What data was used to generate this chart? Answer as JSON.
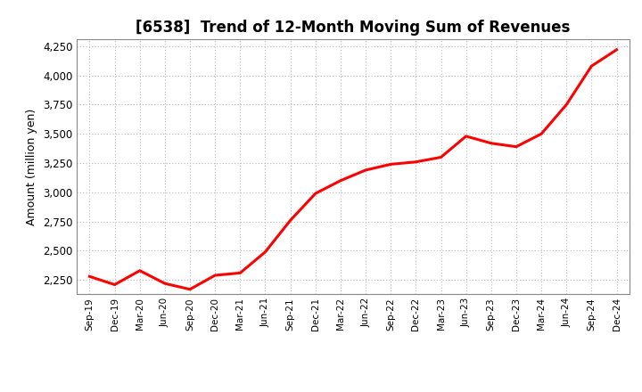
{
  "title": "[6538]  Trend of 12-Month Moving Sum of Revenues",
  "ylabel": "Amount (million yen)",
  "line_color": "#FF0000",
  "line_width": 2.2,
  "background_color": "#FFFFFF",
  "plot_bg_color": "#FFFFFF",
  "grid_color": "#BBBBBB",
  "ylim": [
    2130,
    4310
  ],
  "yticks": [
    2250,
    2500,
    2750,
    3000,
    3250,
    3500,
    3750,
    4000,
    4250
  ],
  "labels": [
    "Sep-19",
    "Dec-19",
    "Mar-20",
    "Jun-20",
    "Sep-20",
    "Dec-20",
    "Mar-21",
    "Jun-21",
    "Sep-21",
    "Dec-21",
    "Mar-22",
    "Jun-22",
    "Sep-22",
    "Dec-22",
    "Mar-23",
    "Jun-23",
    "Sep-23",
    "Dec-23",
    "Mar-24",
    "Jun-24",
    "Sep-24",
    "Dec-24"
  ],
  "values": [
    2280,
    2210,
    2330,
    2220,
    2170,
    2290,
    2310,
    2490,
    2760,
    2990,
    3100,
    3190,
    3240,
    3260,
    3300,
    3480,
    3420,
    3390,
    3500,
    3750,
    4080,
    4220
  ],
  "title_fontsize": 12,
  "ylabel_fontsize": 9,
  "tick_fontsize": 8.5,
  "xtick_fontsize": 7.5
}
